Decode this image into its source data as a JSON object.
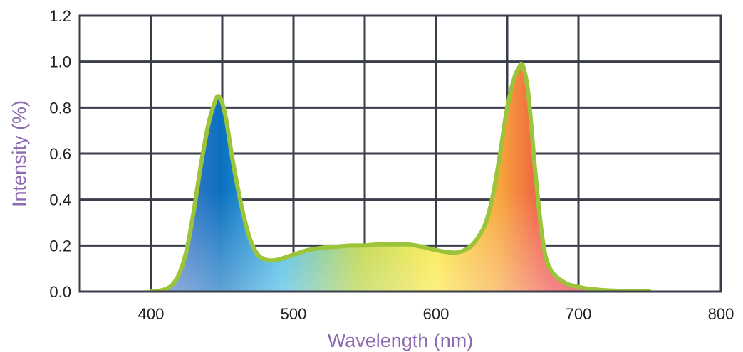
{
  "chart_data": {
    "type": "area",
    "xlabel": "Wavelength (nm)",
    "ylabel": "Intensity (%)",
    "xlim": [
      350,
      800
    ],
    "ylim": [
      0,
      1.2
    ],
    "x_ticks": [
      "400",
      "500",
      "600",
      "700",
      "800"
    ],
    "y_ticks": [
      "0.0",
      "0.2",
      "0.4",
      "0.6",
      "0.8",
      "1.0",
      "1.2"
    ],
    "grid": true,
    "colors": {
      "outline": "#9cc43a",
      "grid": "#3a3d4a",
      "axis_label": "#8e6bb1",
      "spectrum": [
        "#6c80c8",
        "#0a6fc0",
        "#40b8e6",
        "#b8d23a",
        "#fbe83c",
        "#f7a43a",
        "#ef4c48",
        "#e8163e",
        "#ee6a92"
      ]
    },
    "series": [
      {
        "x": [
          400,
          405,
          410,
          415,
          420,
          425,
          430,
          435,
          440,
          444,
          447,
          450,
          453,
          456,
          460,
          465,
          470,
          475,
          480,
          485,
          490,
          495,
          500,
          510,
          520,
          530,
          540,
          550,
          560,
          570,
          580,
          590,
          600,
          610,
          615,
          620,
          625,
          630,
          635,
          640,
          645,
          650,
          655,
          658,
          660,
          662,
          665,
          670,
          675,
          680,
          690,
          700,
          710,
          720,
          730,
          740,
          750
        ],
        "y": [
          0.0,
          0.003,
          0.01,
          0.03,
          0.08,
          0.18,
          0.35,
          0.55,
          0.72,
          0.81,
          0.85,
          0.82,
          0.74,
          0.62,
          0.48,
          0.33,
          0.22,
          0.16,
          0.14,
          0.135,
          0.14,
          0.15,
          0.16,
          0.18,
          0.19,
          0.195,
          0.2,
          0.2,
          0.205,
          0.205,
          0.205,
          0.195,
          0.18,
          0.17,
          0.17,
          0.18,
          0.2,
          0.24,
          0.3,
          0.42,
          0.6,
          0.8,
          0.93,
          0.97,
          0.99,
          0.96,
          0.85,
          0.5,
          0.22,
          0.1,
          0.04,
          0.02,
          0.01,
          0.005,
          0.003,
          0.001,
          0.0
        ]
      }
    ]
  }
}
